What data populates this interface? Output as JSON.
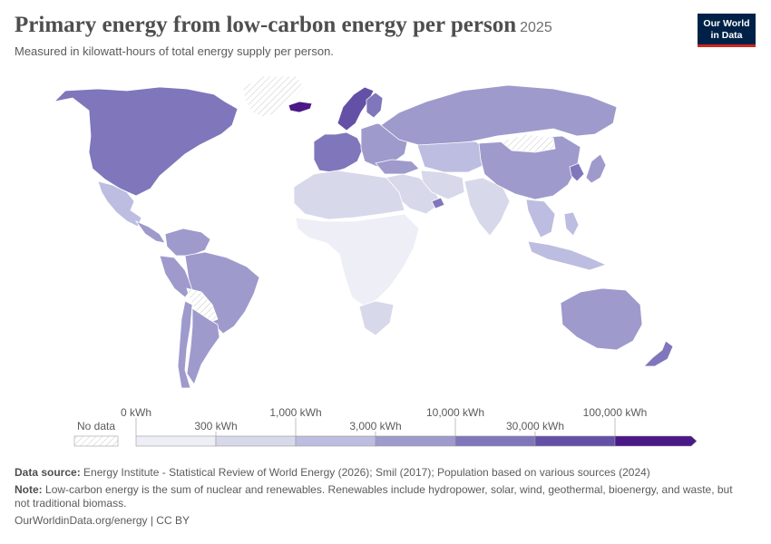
{
  "title": "Primary energy from low-carbon energy per person",
  "year": "2025",
  "subtitle": "Measured in kilowatt-hours of total energy supply per person.",
  "logo": {
    "line1": "Our World",
    "line2": "in Data"
  },
  "chart_data": {
    "type": "choropleth",
    "legend": {
      "no_data_label": "No data",
      "bins": [
        {
          "label": "0 kWh",
          "color": "#eeeef7"
        },
        {
          "label": "300 kWh",
          "color": "#d7d8ea"
        },
        {
          "label": "1,000 kWh",
          "color": "#bcbde0"
        },
        {
          "label": "3,000 kWh",
          "color": "#9e9acc"
        },
        {
          "label": "10,000 kWh",
          "color": "#7f76bb"
        },
        {
          "label": "30,000 kWh",
          "color": "#6450a6"
        },
        {
          "label": "100,000 kWh",
          "color": "#4b1887"
        }
      ]
    },
    "regions": [
      {
        "name": "North America",
        "value": 15000
      },
      {
        "name": "Greenland",
        "value": null
      },
      {
        "name": "Mexico",
        "value": 1500
      },
      {
        "name": "Central America",
        "value": 3000
      },
      {
        "name": "Colombia & Venezuela",
        "value": 4000
      },
      {
        "name": "Peru & Ecuador",
        "value": 3000
      },
      {
        "name": "Brazil",
        "value": 7000
      },
      {
        "name": "Bolivia & Paraguay",
        "value": null
      },
      {
        "name": "Chile",
        "value": 6000
      },
      {
        "name": "Argentina",
        "value": 4500
      },
      {
        "name": "Iceland",
        "value": 150000
      },
      {
        "name": "Norway & Sweden",
        "value": 40000
      },
      {
        "name": "Finland",
        "value": 25000
      },
      {
        "name": "Western Europe",
        "value": 12000
      },
      {
        "name": "Eastern Europe",
        "value": 4000
      },
      {
        "name": "Russia",
        "value": 5000
      },
      {
        "name": "Turkey",
        "value": 4000
      },
      {
        "name": "Central Asia",
        "value": 1200
      },
      {
        "name": "Middle East",
        "value": 400
      },
      {
        "name": "UAE",
        "value": 12000
      },
      {
        "name": "Iran",
        "value": 500
      },
      {
        "name": "South Asia",
        "value": 700
      },
      {
        "name": "China",
        "value": 6000
      },
      {
        "name": "Mongolia",
        "value": null
      },
      {
        "name": "Korea",
        "value": 12000
      },
      {
        "name": "Japan",
        "value": 7000
      },
      {
        "name": "Southeast Asia",
        "value": 1500
      },
      {
        "name": "Indonesia",
        "value": 1000
      },
      {
        "name": "Philippines",
        "value": 1000
      },
      {
        "name": "Australia",
        "value": 6000
      },
      {
        "name": "New Zealand",
        "value": 12000
      },
      {
        "name": "North Africa",
        "value": 500
      },
      {
        "name": "Sub-Saharan Africa",
        "value": 200
      },
      {
        "name": "Southern Africa",
        "value": 800
      }
    ]
  },
  "footer": {
    "source_label": "Data source:",
    "source_text": "Energy Institute - Statistical Review of World Energy (2026); Smil (2017); Population based on various sources (2024)",
    "note_label": "Note:",
    "note_text": "Low-carbon energy is the sum of nuclear and renewables. Renewables include hydropower, solar, wind, geothermal, bioenergy, and waste, but not traditional biomass.",
    "url": "OurWorldinData.org/energy | CC BY"
  }
}
